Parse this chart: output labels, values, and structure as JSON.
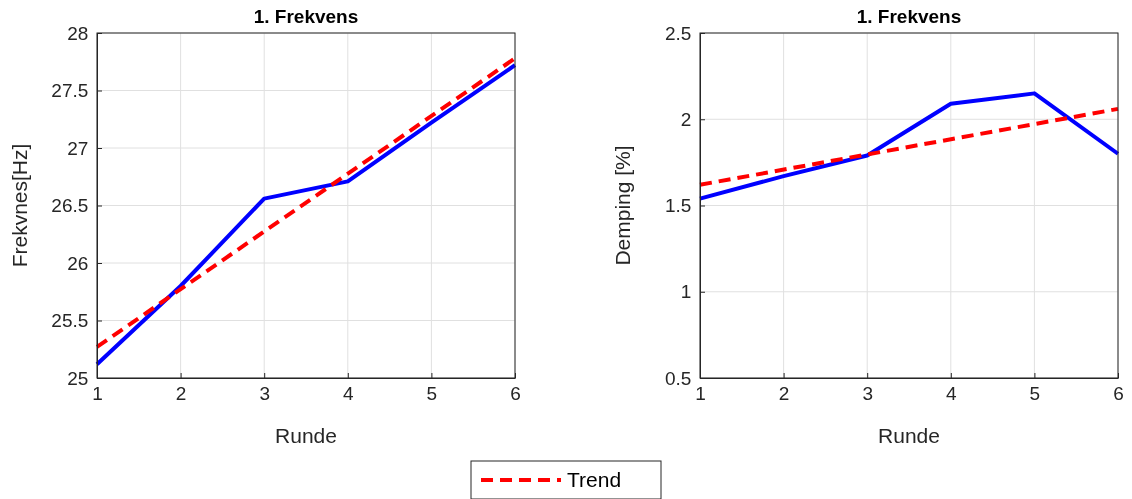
{
  "chart_data": [
    {
      "type": "line",
      "title": "1. Frekvens",
      "xlabel": "Runde",
      "ylabel": "Frekvnes[Hz]",
      "xlim": [
        1,
        6
      ],
      "xticks": [
        1,
        2,
        3,
        4,
        5,
        6
      ],
      "ylim": [
        25,
        28
      ],
      "yticks": [
        25,
        25.5,
        26,
        26.5,
        27,
        27.5,
        28
      ],
      "grid": true,
      "legend": "bottom",
      "series": [
        {
          "color": "#0000ff",
          "line_style": "solid",
          "x": [
            1,
            2,
            3,
            4,
            5,
            6
          ],
          "values": [
            25.12,
            25.8,
            26.56,
            26.71,
            27.22,
            27.72
          ]
        },
        {
          "name": "Trend",
          "color": "#ff0000",
          "line_style": "dashed",
          "x": [
            1,
            6
          ],
          "values": [
            25.27,
            27.78
          ]
        }
      ]
    },
    {
      "type": "line",
      "title": "1. Frekvens",
      "xlabel": "Runde",
      "ylabel": "Demping [%]",
      "xlim": [
        1,
        6
      ],
      "xticks": [
        1,
        2,
        3,
        4,
        5,
        6
      ],
      "ylim": [
        0.5,
        2.5
      ],
      "yticks": [
        0.5,
        1,
        1.5,
        2,
        2.5
      ],
      "grid": true,
      "series": [
        {
          "color": "#0000ff",
          "line_style": "solid",
          "x": [
            1,
            2,
            3,
            4,
            5,
            6
          ],
          "values": [
            1.54,
            1.67,
            1.79,
            2.09,
            2.15,
            1.8
          ]
        },
        {
          "color": "#ff0000",
          "line_style": "dashed",
          "x": [
            1,
            6
          ],
          "values": [
            1.62,
            2.06
          ]
        }
      ]
    }
  ]
}
